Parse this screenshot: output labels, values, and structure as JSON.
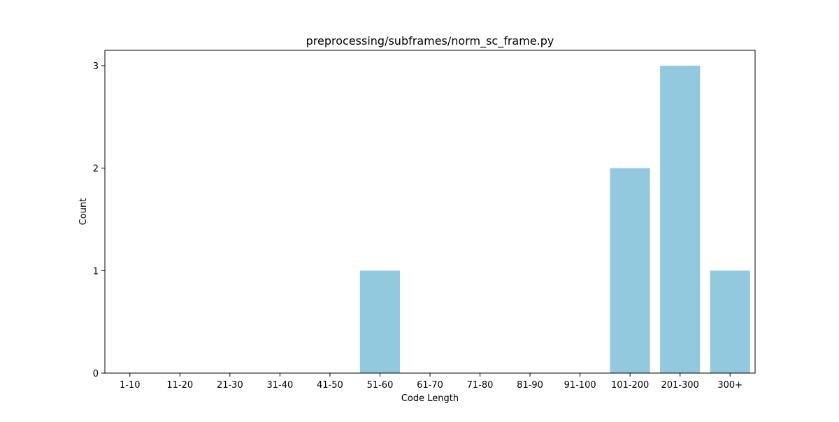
{
  "chart_data": {
    "type": "bar",
    "title": "preprocessing/subframes/norm_sc_frame.py",
    "xlabel": "Code Length",
    "ylabel": "Count",
    "categories": [
      "1-10",
      "11-20",
      "21-30",
      "31-40",
      "41-50",
      "51-60",
      "61-70",
      "71-80",
      "81-90",
      "91-100",
      "101-200",
      "201-300",
      "300+"
    ],
    "values": [
      0,
      0,
      0,
      0,
      0,
      1,
      0,
      0,
      0,
      0,
      2,
      3,
      1
    ],
    "ylim": [
      0,
      3.15
    ],
    "yticks": [
      0,
      1,
      2,
      3
    ],
    "grid": false,
    "bar_color": "#92c9de"
  }
}
